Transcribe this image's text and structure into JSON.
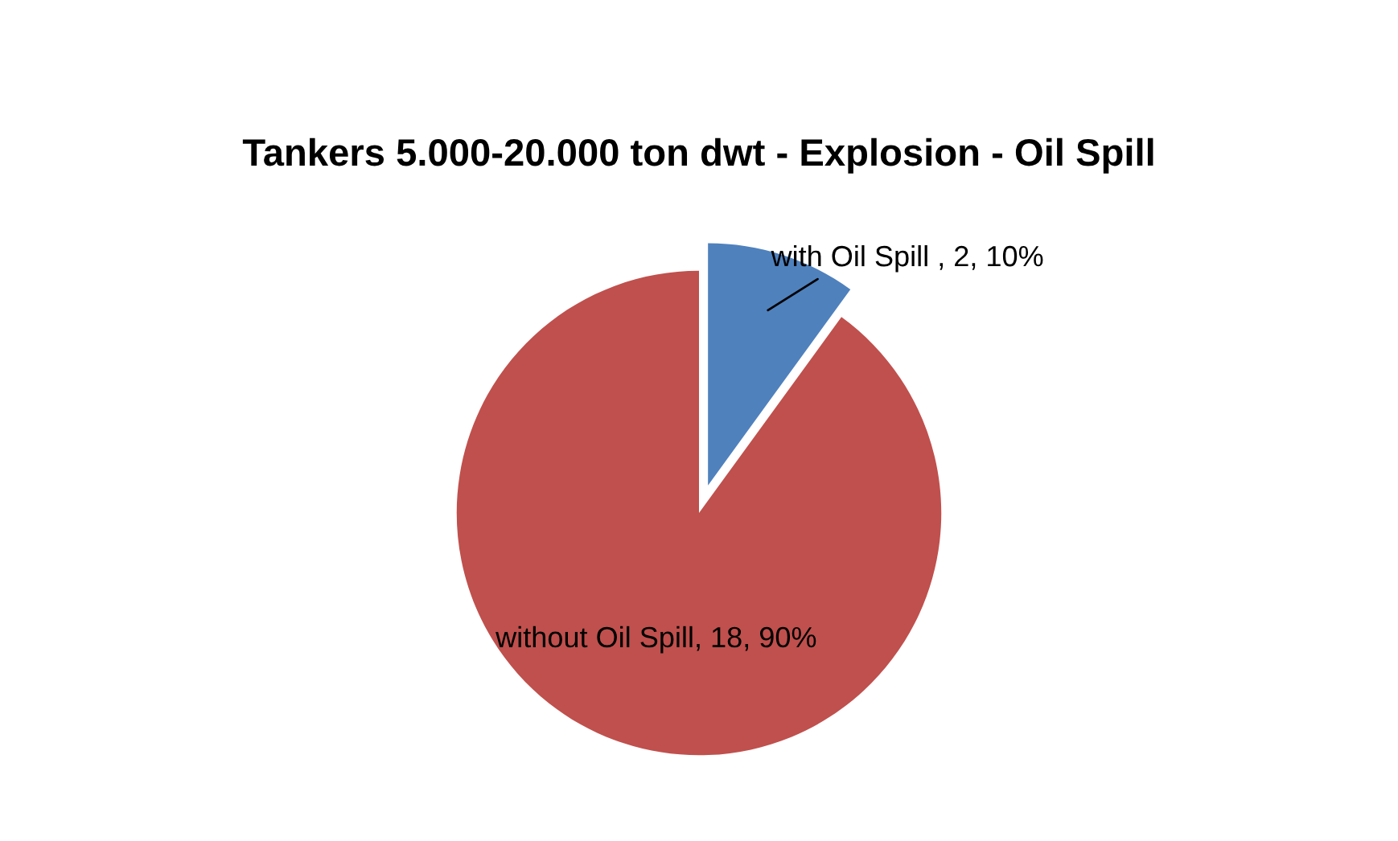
{
  "chart_data": {
    "type": "pie",
    "title": "Tankers 5.000-20.000 ton dwt - Explosion - Oil Spill",
    "categories": [
      "with Oil Spill",
      "without Oil Spill"
    ],
    "values": [
      2,
      18
    ],
    "colors": [
      "#4f81bd",
      "#c0504d"
    ],
    "value_labels": [
      " , 2, 10%",
      ", 18, 90%"
    ],
    "legend": false
  }
}
